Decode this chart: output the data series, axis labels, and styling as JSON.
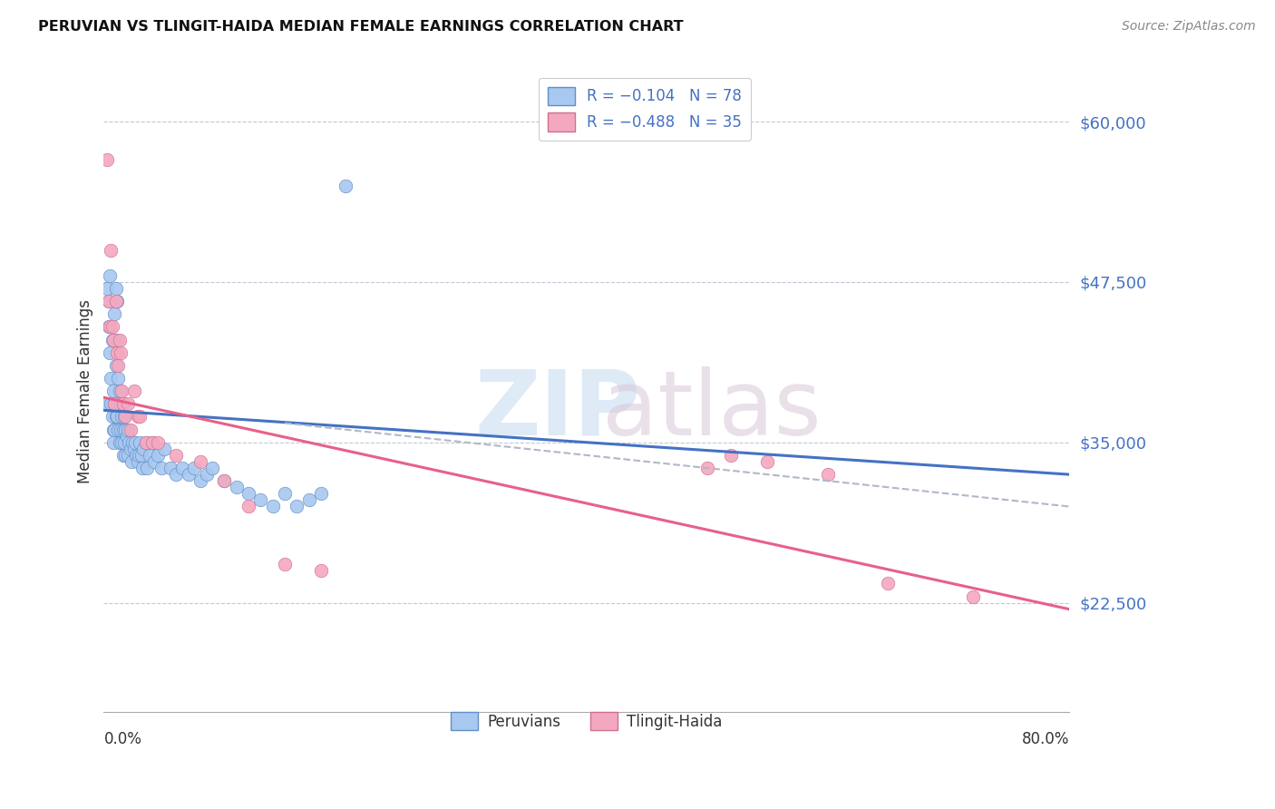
{
  "title": "PERUVIAN VS TLINGIT-HAIDA MEDIAN FEMALE EARNINGS CORRELATION CHART",
  "source": "Source: ZipAtlas.com",
  "ylabel": "Median Female Earnings",
  "yticks": [
    22500,
    35000,
    47500,
    60000
  ],
  "ytick_labels": [
    "$22,500",
    "$35,000",
    "$47,500",
    "$60,000"
  ],
  "xmin": 0.0,
  "xmax": 0.8,
  "ymin": 14000,
  "ymax": 64000,
  "blue_color": "#A8C8F0",
  "pink_color": "#F4A8C0",
  "blue_edge_color": "#6090C8",
  "pink_edge_color": "#D07090",
  "blue_line_color": "#4472C4",
  "pink_line_color": "#E8608A",
  "dashed_line_color": "#B0B8C8",
  "blue_scatter_x": [
    0.002,
    0.003,
    0.004,
    0.004,
    0.005,
    0.005,
    0.006,
    0.006,
    0.007,
    0.007,
    0.008,
    0.008,
    0.008,
    0.009,
    0.009,
    0.009,
    0.01,
    0.01,
    0.01,
    0.011,
    0.011,
    0.011,
    0.012,
    0.012,
    0.013,
    0.013,
    0.014,
    0.014,
    0.015,
    0.015,
    0.016,
    0.016,
    0.017,
    0.017,
    0.018,
    0.018,
    0.019,
    0.02,
    0.02,
    0.021,
    0.022,
    0.023,
    0.024,
    0.025,
    0.026,
    0.027,
    0.028,
    0.029,
    0.03,
    0.031,
    0.032,
    0.033,
    0.035,
    0.036,
    0.038,
    0.04,
    0.042,
    0.045,
    0.048,
    0.05,
    0.055,
    0.06,
    0.065,
    0.07,
    0.075,
    0.08,
    0.085,
    0.09,
    0.1,
    0.11,
    0.12,
    0.13,
    0.14,
    0.15,
    0.16,
    0.17,
    0.18,
    0.2
  ],
  "blue_scatter_y": [
    38000,
    47000,
    46000,
    44000,
    48000,
    42000,
    40000,
    38000,
    43000,
    37000,
    39000,
    36000,
    35000,
    45000,
    38000,
    36000,
    47000,
    41000,
    37000,
    46000,
    43000,
    37000,
    40000,
    36000,
    39000,
    35000,
    38000,
    36000,
    37000,
    35000,
    36000,
    34000,
    37000,
    35000,
    36000,
    34000,
    35500,
    36000,
    34000,
    35000,
    34500,
    33500,
    35000,
    34500,
    35000,
    34000,
    33500,
    34000,
    35000,
    34000,
    33000,
    34500,
    35000,
    33000,
    34000,
    35000,
    33500,
    34000,
    33000,
    34500,
    33000,
    32500,
    33000,
    32500,
    33000,
    32000,
    32500,
    33000,
    32000,
    31500,
    31000,
    30500,
    30000,
    31000,
    30000,
    30500,
    31000,
    55000
  ],
  "pink_scatter_x": [
    0.003,
    0.004,
    0.005,
    0.006,
    0.007,
    0.008,
    0.009,
    0.01,
    0.011,
    0.012,
    0.013,
    0.014,
    0.015,
    0.016,
    0.018,
    0.02,
    0.022,
    0.025,
    0.028,
    0.03,
    0.035,
    0.04,
    0.045,
    0.06,
    0.08,
    0.1,
    0.12,
    0.15,
    0.18,
    0.5,
    0.52,
    0.55,
    0.6,
    0.65,
    0.72
  ],
  "pink_scatter_y": [
    57000,
    46000,
    44000,
    50000,
    44000,
    43000,
    38000,
    46000,
    42000,
    41000,
    43000,
    42000,
    39000,
    38000,
    37000,
    38000,
    36000,
    39000,
    37000,
    37000,
    35000,
    35000,
    35000,
    34000,
    33500,
    32000,
    30000,
    25500,
    25000,
    33000,
    34000,
    33500,
    32500,
    24000,
    23000
  ],
  "blue_line_x0": 0.0,
  "blue_line_x1": 0.8,
  "blue_line_y0": 37500,
  "blue_line_y1": 32500,
  "pink_line_x0": 0.0,
  "pink_line_x1": 0.8,
  "pink_line_y0": 38500,
  "pink_line_y1": 22000,
  "dash_line_x0": 0.15,
  "dash_line_x1": 0.8,
  "dash_line_y0": 36500,
  "dash_line_y1": 30000
}
